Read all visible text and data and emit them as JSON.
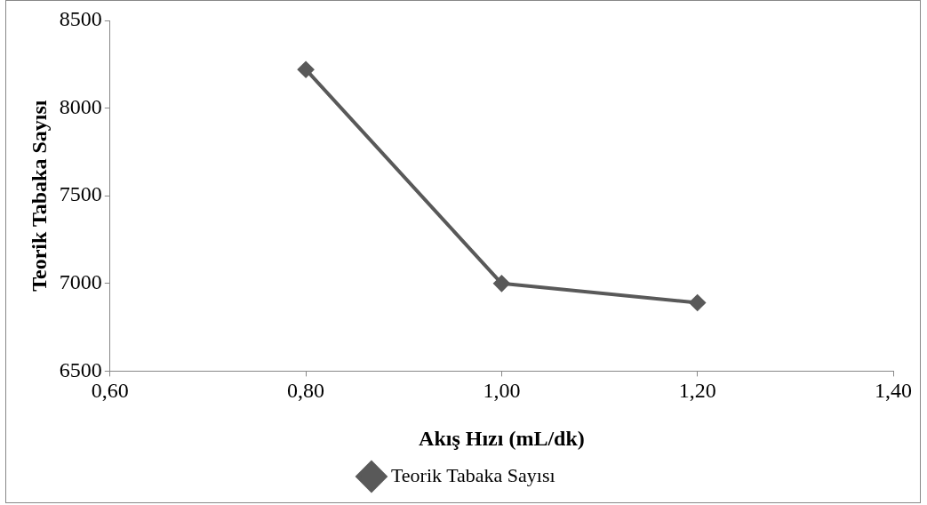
{
  "chart_data": {
    "type": "line",
    "xlabel": "Akış Hızı (mL/dk)",
    "ylabel": "Teorik Tabaka Sayısı",
    "x": [
      0.8,
      1.0,
      1.2
    ],
    "series": [
      {
        "name": "Teorik Tabaka Sayısı",
        "color": "#595959",
        "values": [
          8220,
          7000,
          6890
        ]
      }
    ],
    "xlim": [
      0.6,
      1.4
    ],
    "xticks": [
      {
        "value": 0.6,
        "label": "0,60"
      },
      {
        "value": 0.8,
        "label": "0,80"
      },
      {
        "value": 1.0,
        "label": "1,00"
      },
      {
        "value": 1.2,
        "label": "1,20"
      },
      {
        "value": 1.4,
        "label": "1,40"
      }
    ],
    "ylim": [
      6500,
      8500
    ],
    "yticks": [
      6500,
      7000,
      7500,
      8000,
      8500
    ],
    "grid": false,
    "legend": "bottom",
    "marker": "diamond",
    "line_style": "solid"
  }
}
